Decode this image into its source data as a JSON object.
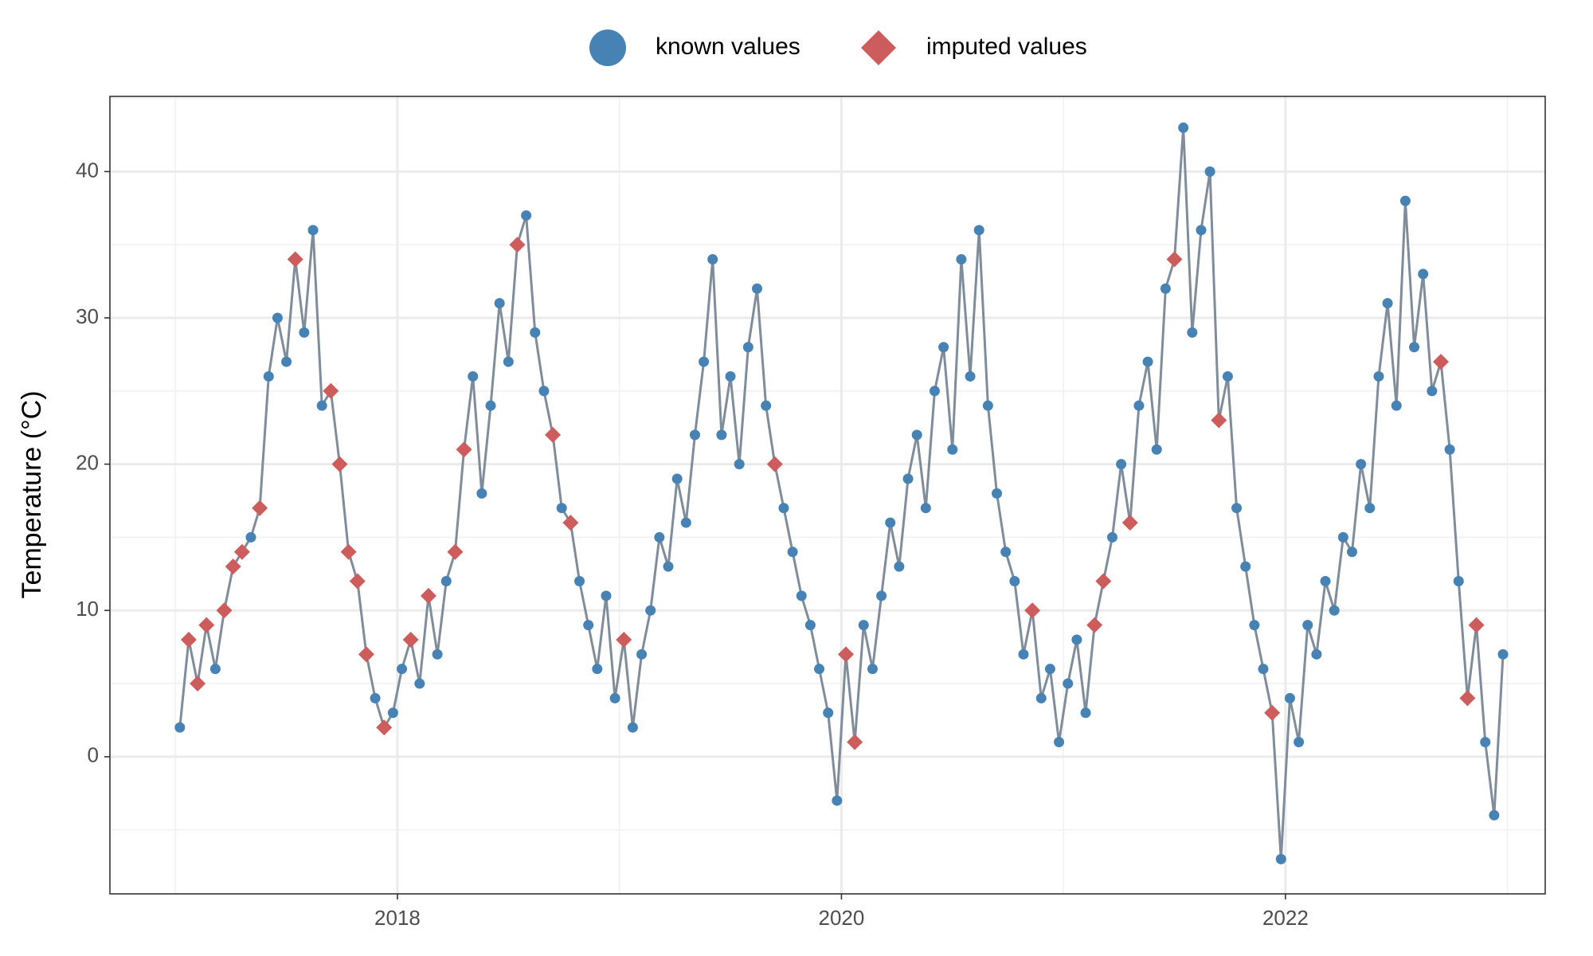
{
  "chart_data": {
    "type": "line",
    "ylabel": "Temperature (°C)",
    "x": [
      2017.02,
      2017.06,
      2017.1,
      2017.14,
      2017.18,
      2017.22,
      2017.26,
      2017.3,
      2017.34,
      2017.38,
      2017.42,
      2017.46,
      2017.5,
      2017.54,
      2017.58,
      2017.62,
      2017.66,
      2017.7,
      2017.74,
      2017.78,
      2017.82,
      2017.86,
      2017.9,
      2017.94,
      2017.98,
      2018.02,
      2018.06,
      2018.1,
      2018.14,
      2018.18,
      2018.22,
      2018.26,
      2018.3,
      2018.34,
      2018.38,
      2018.42,
      2018.46,
      2018.5,
      2018.54,
      2018.58,
      2018.62,
      2018.66,
      2018.7,
      2018.74,
      2018.78,
      2018.82,
      2018.86,
      2018.9,
      2018.94,
      2018.98,
      2019.02,
      2019.06,
      2019.1,
      2019.14,
      2019.18,
      2019.22,
      2019.26,
      2019.3,
      2019.34,
      2019.38,
      2019.42,
      2019.46,
      2019.5,
      2019.54,
      2019.58,
      2019.62,
      2019.66,
      2019.7,
      2019.74,
      2019.78,
      2019.82,
      2019.86,
      2019.9,
      2019.94,
      2019.98,
      2020.02,
      2020.06,
      2020.1,
      2020.14,
      2020.18,
      2020.22,
      2020.26,
      2020.3,
      2020.34,
      2020.38,
      2020.42,
      2020.46,
      2020.5,
      2020.54,
      2020.58,
      2020.62,
      2020.66,
      2020.7,
      2020.74,
      2020.78,
      2020.82,
      2020.86,
      2020.9,
      2020.94,
      2020.98,
      2021.02,
      2021.06,
      2021.1,
      2021.14,
      2021.18,
      2021.22,
      2021.26,
      2021.3,
      2021.34,
      2021.38,
      2021.42,
      2021.46,
      2021.5,
      2021.54,
      2021.58,
      2021.62,
      2021.66,
      2021.7,
      2021.74,
      2021.78,
      2021.82,
      2021.86,
      2021.9,
      2021.94,
      2021.98,
      2022.02,
      2022.06,
      2022.1,
      2022.14,
      2022.18,
      2022.22,
      2022.26,
      2022.3,
      2022.34,
      2022.38,
      2022.42,
      2022.46,
      2022.5,
      2022.54,
      2022.58,
      2022.62,
      2022.66,
      2022.7,
      2022.74,
      2022.78,
      2022.82,
      2022.86,
      2022.9,
      2022.94,
      2022.98
    ],
    "series": [
      {
        "name": "known values",
        "color": "#4682b4",
        "marker": "circle",
        "values": [
          2,
          null,
          null,
          null,
          6,
          null,
          null,
          null,
          15,
          null,
          26,
          30,
          27,
          null,
          29,
          36,
          24,
          null,
          null,
          null,
          null,
          null,
          4,
          null,
          3,
          6,
          null,
          5,
          null,
          7,
          12,
          null,
          null,
          26,
          18,
          24,
          31,
          27,
          null,
          37,
          29,
          25,
          null,
          17,
          null,
          12,
          9,
          6,
          11,
          4,
          null,
          2,
          7,
          10,
          15,
          13,
          19,
          16,
          22,
          27,
          34,
          22,
          26,
          20,
          28,
          32,
          24,
          null,
          17,
          14,
          11,
          9,
          6,
          3,
          -3,
          null,
          null,
          9,
          6,
          11,
          16,
          13,
          19,
          22,
          17,
          25,
          28,
          21,
          34,
          26,
          36,
          24,
          18,
          14,
          12,
          7,
          null,
          4,
          6,
          1,
          5,
          8,
          3,
          null,
          null,
          15,
          20,
          null,
          24,
          27,
          21,
          32,
          null,
          43,
          29,
          36,
          40,
          null,
          26,
          17,
          13,
          9,
          6,
          null,
          -7,
          4,
          1,
          9,
          7,
          12,
          10,
          15,
          14,
          20,
          17,
          26,
          31,
          24,
          38,
          28,
          33,
          25,
          null,
          21,
          12,
          null,
          null,
          1,
          -4,
          7
        ]
      },
      {
        "name": "imputed values",
        "color": "#cd5c5c",
        "marker": "diamond",
        "values": [
          null,
          8,
          5,
          9,
          null,
          10,
          13,
          14,
          null,
          17,
          null,
          null,
          null,
          34,
          null,
          null,
          null,
          25,
          20,
          14,
          12,
          7,
          null,
          2,
          null,
          null,
          8,
          null,
          11,
          null,
          null,
          14,
          21,
          null,
          null,
          null,
          null,
          null,
          35,
          null,
          null,
          null,
          22,
          null,
          16,
          null,
          null,
          null,
          null,
          null,
          8,
          null,
          null,
          null,
          null,
          null,
          null,
          null,
          null,
          null,
          null,
          null,
          null,
          null,
          null,
          null,
          null,
          20,
          null,
          null,
          null,
          null,
          null,
          null,
          null,
          7,
          1,
          null,
          null,
          null,
          null,
          null,
          null,
          null,
          null,
          null,
          null,
          null,
          null,
          null,
          null,
          null,
          null,
          null,
          null,
          null,
          10,
          null,
          null,
          null,
          null,
          null,
          null,
          9,
          12,
          null,
          null,
          16,
          null,
          null,
          null,
          null,
          34,
          null,
          null,
          null,
          null,
          23,
          null,
          null,
          null,
          null,
          null,
          3,
          null,
          null,
          null,
          null,
          null,
          null,
          null,
          null,
          null,
          null,
          null,
          null,
          null,
          null,
          null,
          null,
          null,
          null,
          27,
          null,
          null,
          4,
          9,
          null,
          null,
          null
        ]
      }
    ],
    "line_color": "#7f8c99",
    "xlim": [
      2016.705,
      2023.17
    ],
    "xticks": [
      2018,
      2020,
      2022
    ],
    "ylim": [
      -9.375,
      45.14
    ],
    "yticks": [
      0,
      10,
      20,
      30,
      40
    ],
    "grid": true,
    "legend": "top"
  }
}
